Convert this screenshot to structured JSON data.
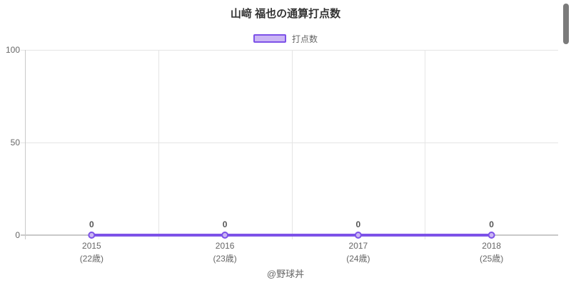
{
  "header": {
    "title": "山﨑 福也の通算打点数"
  },
  "legend": {
    "label": "打点数"
  },
  "footer": {
    "credit": "@野球丼"
  },
  "colors": {
    "accent_line": "#7d52e8",
    "accent_fill": "#cbb6f4",
    "title_text": "#333333",
    "tick_text": "#666666",
    "data_label_text": "#555555",
    "gridline": "#e5e5e5",
    "axis_line": "#c9c9c9",
    "scrollbar_thumb": "#7b7b7b",
    "background": "#ffffff"
  },
  "chart_data": {
    "type": "line",
    "title": "山﨑 福也の通算打点数",
    "categories": [
      "2015",
      "2016",
      "2017",
      "2018"
    ],
    "category_sublabels": [
      "(22歳)",
      "(23歳)",
      "(24歳)",
      "(25歳)"
    ],
    "series": [
      {
        "name": "打点数",
        "values": [
          0,
          0,
          0,
          0
        ]
      }
    ],
    "data_labels": [
      "0",
      "0",
      "0",
      "0"
    ],
    "ylim": [
      0,
      100
    ],
    "yticks": [
      0,
      50,
      100
    ],
    "grid": true,
    "legend_position": "top",
    "xlabel": "",
    "ylabel": "",
    "footer": "@野球丼"
  }
}
